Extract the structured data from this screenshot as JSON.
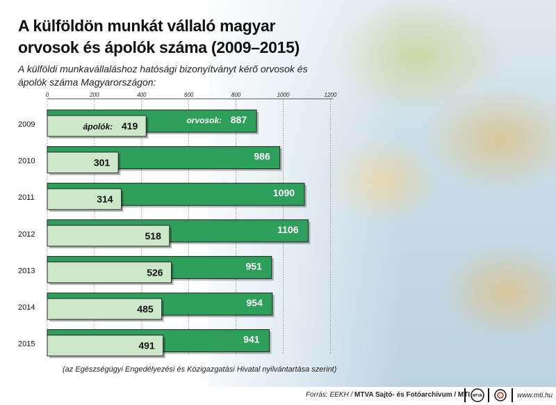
{
  "header": {
    "title": "A külföldön munkát vállaló magyar orvosok és ápolók száma (2009–2015)",
    "subtitle": "A külföldi munkavállaláshoz hatósági bizonyítványt kérő orvosok és ápolók száma Magyarországon:"
  },
  "footnote": "(az Egészségügyi Engedélyezési és Közigazgatási Hivatal nyilvántartása szerint)",
  "footer": {
    "source_prefix": "Forrás: EEKH / ",
    "source_org": "MTVA Sajtó- és Fotóarchívum / MTI",
    "logo_text": "MTVA",
    "url": "www.mti.hu"
  },
  "colors": {
    "doctors": "#2e9f5b",
    "nurses": "#cce8c9",
    "bar_border": "#222222",
    "grid": "#555555"
  },
  "chart_data": {
    "type": "bar",
    "orientation": "horizontal",
    "categories": [
      "2009",
      "2010",
      "2011",
      "2012",
      "2013",
      "2014",
      "2015"
    ],
    "series": [
      {
        "name": "orvosok:",
        "values": [
          887,
          986,
          1090,
          1106,
          951,
          954,
          941
        ]
      },
      {
        "name": "ápolók:",
        "values": [
          419,
          301,
          314,
          518,
          526,
          485,
          491
        ]
      }
    ],
    "xticks": [
      "0",
      "200",
      "400",
      "600",
      "800",
      "1000",
      "1200"
    ],
    "xlim": [
      0,
      1200
    ],
    "grid": true
  }
}
